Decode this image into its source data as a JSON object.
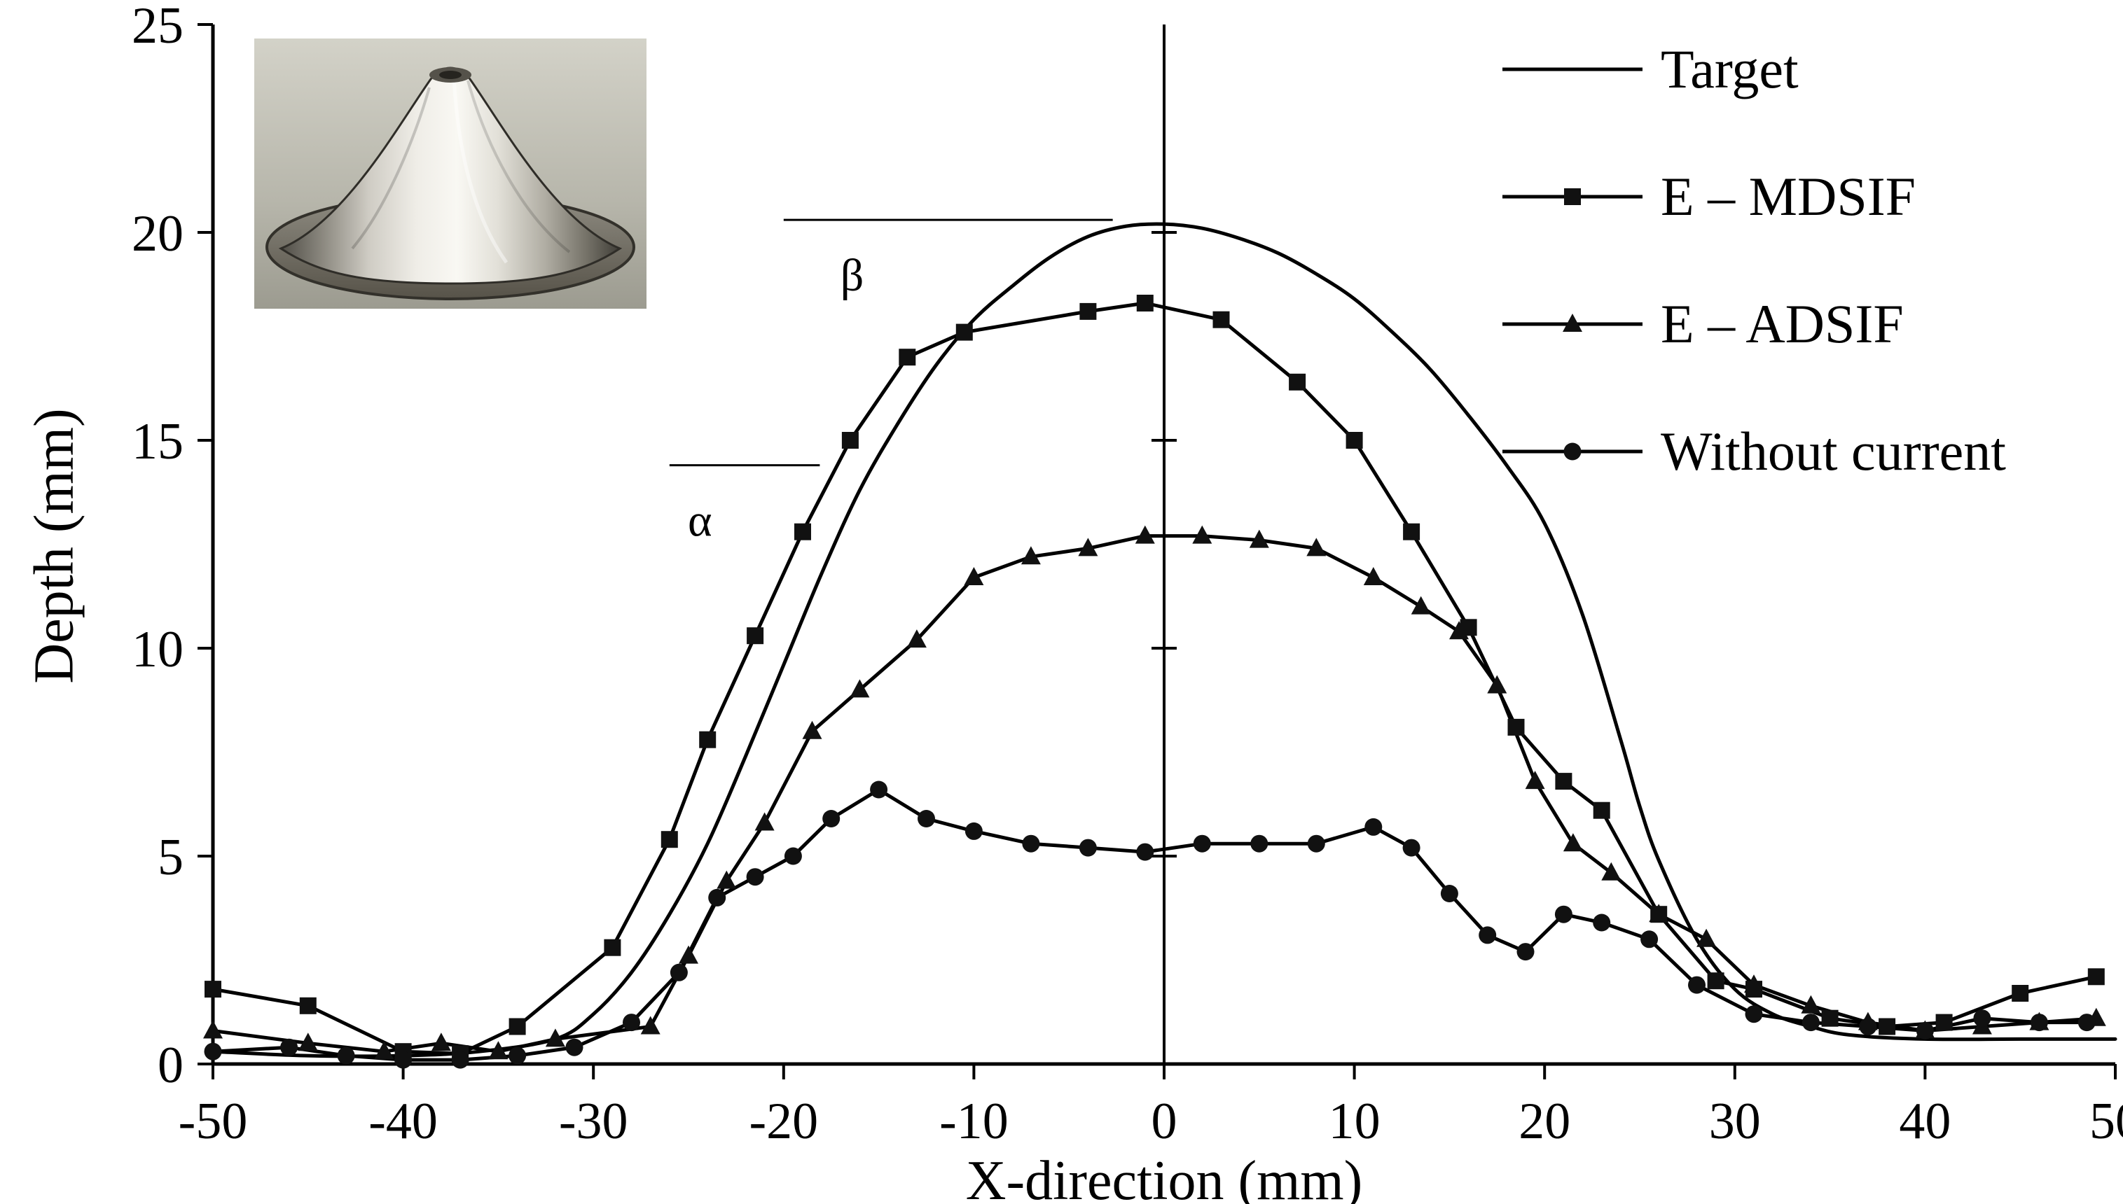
{
  "colors": {
    "stroke": "#000000",
    "marker_fill": "#111111",
    "background": "#ffffff"
  },
  "chart_data": {
    "type": "line",
    "title": "",
    "xlabel": "X-direction (mm)",
    "ylabel": "Depth (mm)",
    "xlim": [
      -50,
      50
    ],
    "ylim": [
      0,
      25
    ],
    "xticks": [
      -50,
      -40,
      -30,
      -20,
      -10,
      0,
      10,
      20,
      30,
      40,
      50
    ],
    "yticks": [
      0,
      5,
      10,
      15,
      20,
      25
    ],
    "center_axis_at_x": 0,
    "center_ticks": [
      5,
      10,
      15,
      20
    ],
    "grid": false,
    "legend_position": "top-right",
    "series": [
      {
        "name": "Target",
        "marker": "none",
        "smooth": true,
        "x": [
          -50,
          -45,
          -40,
          -36,
          -32,
          -30,
          -28,
          -26,
          -24,
          -22,
          -20,
          -18,
          -16,
          -14,
          -12,
          -10,
          -8,
          -6,
          -4,
          -2,
          0,
          2,
          4,
          6,
          8,
          10,
          12,
          14,
          16,
          18,
          20,
          22,
          24,
          25,
          26,
          28,
          30,
          32,
          34,
          36,
          40,
          45,
          50
        ],
        "y": [
          0.3,
          0.2,
          0.2,
          0.3,
          0.6,
          1.2,
          2.2,
          3.6,
          5.3,
          7.4,
          9.6,
          11.8,
          13.8,
          15.4,
          16.8,
          17.9,
          18.7,
          19.4,
          19.9,
          20.15,
          20.2,
          20.1,
          19.85,
          19.5,
          19.0,
          18.4,
          17.6,
          16.7,
          15.6,
          14.4,
          13.0,
          10.8,
          7.8,
          6.2,
          4.9,
          3.0,
          1.8,
          1.2,
          0.9,
          0.7,
          0.6,
          0.6,
          0.6
        ]
      },
      {
        "name": "E – MDSIF",
        "marker": "square",
        "smooth": false,
        "x": [
          -50,
          -45,
          -40,
          -37,
          -34,
          -29,
          -26,
          -24,
          -21.5,
          -19,
          -16.5,
          -13.5,
          -10.5,
          -4,
          -1,
          3,
          7,
          10,
          13,
          16,
          18.5,
          21,
          23,
          26,
          29,
          31,
          35,
          38,
          41,
          45,
          49
        ],
        "y": [
          1.8,
          1.4,
          0.3,
          0.25,
          0.9,
          2.8,
          5.4,
          7.8,
          10.3,
          12.8,
          15.0,
          17.0,
          17.6,
          18.1,
          18.3,
          17.9,
          16.4,
          15.0,
          12.8,
          10.5,
          8.1,
          6.8,
          6.1,
          3.6,
          2.0,
          1.8,
          1.1,
          0.9,
          1.0,
          1.7,
          2.1
        ]
      },
      {
        "name": "E – ADSIF",
        "marker": "triangle",
        "smooth": false,
        "x": [
          -50,
          -45,
          -41,
          -38,
          -35,
          -32,
          -27,
          -25,
          -23,
          -21,
          -18.5,
          -16,
          -13,
          -10,
          -7,
          -4,
          -1,
          2,
          5,
          8,
          11,
          13.5,
          15.5,
          17.5,
          19.5,
          21.5,
          23.5,
          26,
          28.5,
          31,
          34,
          37,
          40,
          43,
          46,
          49
        ],
        "y": [
          0.8,
          0.5,
          0.3,
          0.5,
          0.3,
          0.6,
          0.9,
          2.6,
          4.4,
          5.8,
          8.0,
          9.0,
          10.2,
          11.7,
          12.2,
          12.4,
          12.7,
          12.7,
          12.6,
          12.4,
          11.7,
          11.0,
          10.4,
          9.1,
          6.8,
          5.3,
          4.6,
          3.6,
          3.0,
          1.9,
          1.4,
          1.0,
          0.8,
          0.9,
          1.0,
          1.1
        ]
      },
      {
        "name": "Without current",
        "marker": "circle",
        "smooth": false,
        "x": [
          -50,
          -46,
          -43,
          -40,
          -37,
          -34,
          -31,
          -28,
          -25.5,
          -23.5,
          -21.5,
          -19.5,
          -17.5,
          -15,
          -12.5,
          -10,
          -7,
          -4,
          -1,
          2,
          5,
          8,
          11,
          13,
          15,
          17,
          19,
          21,
          23,
          25.5,
          28,
          31,
          34,
          37,
          40,
          43,
          46,
          48.5
        ],
        "y": [
          0.3,
          0.4,
          0.2,
          0.1,
          0.1,
          0.2,
          0.4,
          1.0,
          2.2,
          4.0,
          4.5,
          5.0,
          5.9,
          6.6,
          5.9,
          5.6,
          5.3,
          5.2,
          5.1,
          5.3,
          5.3,
          5.3,
          5.7,
          5.2,
          4.1,
          3.1,
          2.7,
          3.6,
          3.4,
          3.0,
          1.9,
          1.2,
          1.0,
          0.9,
          0.8,
          1.1,
          1.0,
          1.0
        ]
      }
    ],
    "annotations": [
      {
        "id": "beta",
        "label": "β",
        "line_y": 20.3,
        "line_x": [
          -20,
          -2.7
        ],
        "label_x": -16.4,
        "label_y": 18.6
      },
      {
        "id": "alpha",
        "label": "α",
        "line_y": 14.4,
        "line_x": [
          -26,
          -18.1
        ],
        "label_x": -24.4,
        "label_y": 12.7
      }
    ],
    "inset": {
      "name": "formed-cone-photo",
      "description": "photograph of truncated-cone incrementally formed metal part"
    }
  }
}
